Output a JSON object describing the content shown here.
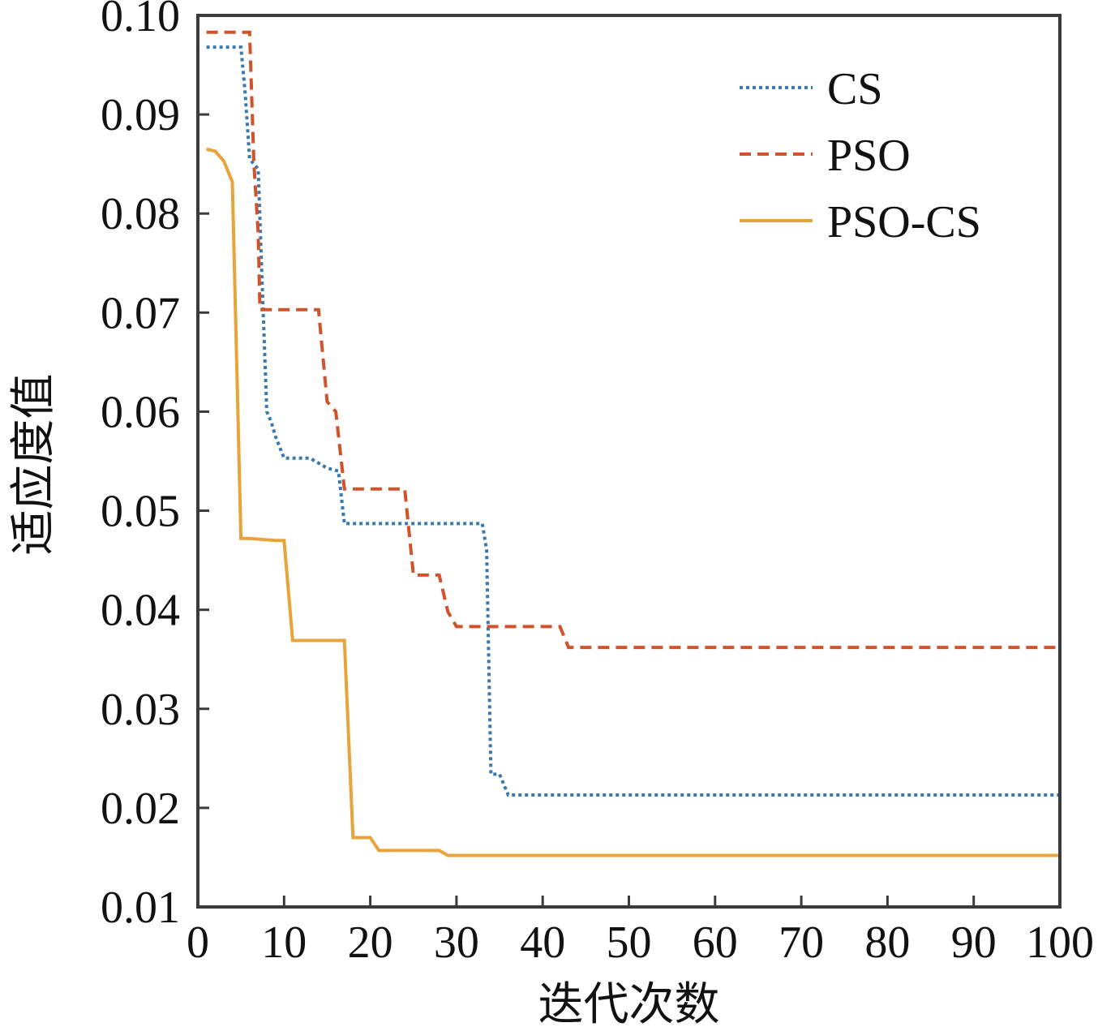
{
  "chart_data": {
    "type": "line",
    "title": "",
    "xlabel": "迭代次数",
    "ylabel": "适应度值",
    "xlim": [
      0,
      100
    ],
    "ylim": [
      0.01,
      0.1
    ],
    "xticks": [
      0,
      10,
      20,
      30,
      40,
      50,
      60,
      70,
      80,
      90,
      100
    ],
    "yticks": [
      0.01,
      0.02,
      0.03,
      0.04,
      0.05,
      0.06,
      0.07,
      0.08,
      0.09,
      0.1
    ],
    "xtick_labels": [
      "0",
      "10",
      "20",
      "30",
      "40",
      "50",
      "60",
      "70",
      "80",
      "90",
      "100"
    ],
    "ytick_labels": [
      "0.01",
      "0.02",
      "0.03",
      "0.04",
      "0.05",
      "0.06",
      "0.07",
      "0.08",
      "0.09",
      "0.10"
    ],
    "grid": false,
    "legend": {
      "position": "top-right"
    },
    "series": [
      {
        "name": "CS",
        "color": "#3a78b0",
        "style": "dotted",
        "x": [
          1,
          5,
          5.5,
          6,
          7,
          7.5,
          8,
          8.5,
          9,
          10,
          13,
          15,
          16.3,
          17,
          33,
          33.5,
          34,
          35,
          36,
          100
        ],
        "y": [
          0.0968,
          0.0968,
          0.092,
          0.0855,
          0.0845,
          0.072,
          0.06,
          0.059,
          0.0575,
          0.0553,
          0.0553,
          0.0543,
          0.054,
          0.0487,
          0.0487,
          0.046,
          0.0234,
          0.0234,
          0.0213,
          0.0213
        ]
      },
      {
        "name": "PSO",
        "color": "#d0532b",
        "style": "dashed",
        "x": [
          1,
          6,
          6.5,
          7,
          7.2,
          14,
          15,
          16,
          17,
          24,
          25,
          28,
          29,
          30,
          42,
          43,
          100
        ],
        "y": [
          0.0983,
          0.0983,
          0.085,
          0.078,
          0.0703,
          0.0703,
          0.061,
          0.06,
          0.0522,
          0.0522,
          0.0435,
          0.0435,
          0.0398,
          0.0383,
          0.0383,
          0.0362,
          0.0362
        ]
      },
      {
        "name": "PSO-CS",
        "color": "#e8a33a",
        "style": "solid",
        "x": [
          1,
          2,
          3,
          4,
          5,
          6,
          9,
          10,
          11,
          16,
          17,
          18,
          20,
          21,
          28,
          29,
          100
        ],
        "y": [
          0.0865,
          0.0863,
          0.0853,
          0.0832,
          0.0472,
          0.0472,
          0.047,
          0.047,
          0.0369,
          0.0369,
          0.0369,
          0.017,
          0.017,
          0.0157,
          0.0157,
          0.0152,
          0.0152
        ]
      }
    ]
  }
}
